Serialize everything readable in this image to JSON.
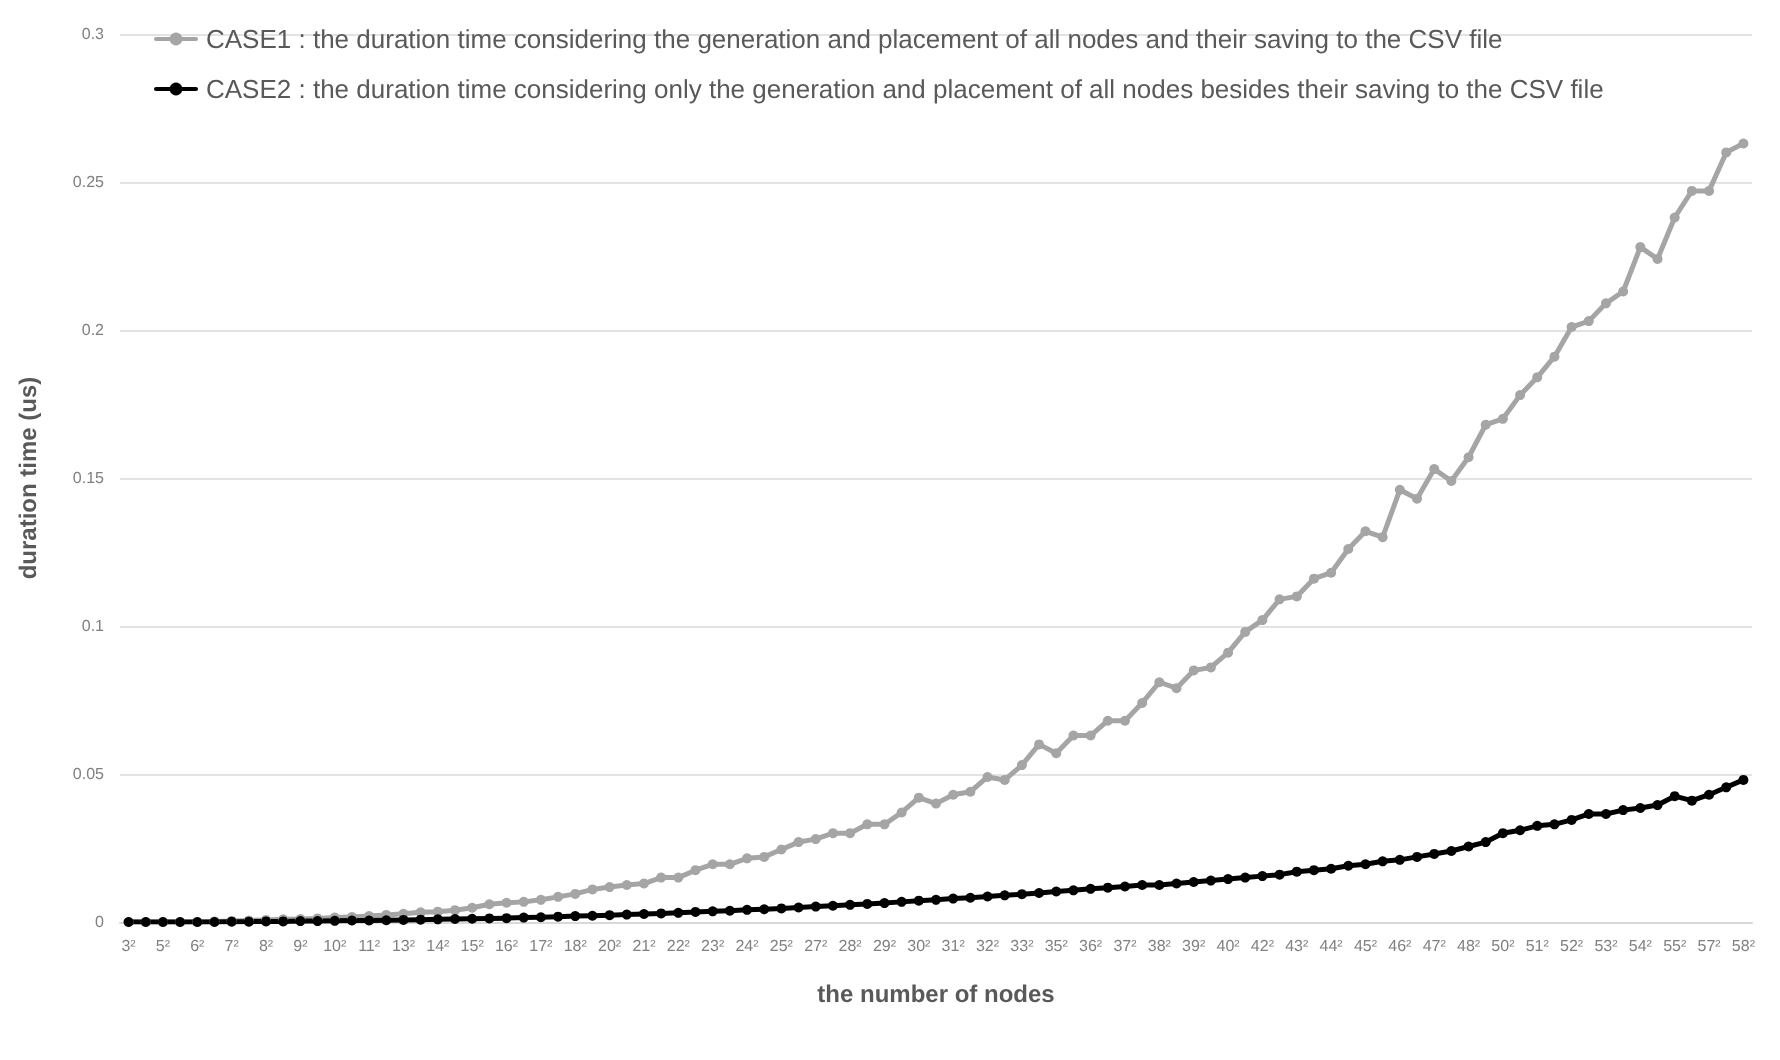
{
  "chart_data": {
    "type": "line",
    "xlabel": "the number of nodes",
    "ylabel": "duration time (us)",
    "categories": [
      "3²",
      null,
      "5²",
      null,
      "6²",
      null,
      "7²",
      null,
      "8²",
      null,
      "9²",
      null,
      "10²",
      null,
      "11²",
      null,
      "13²",
      null,
      "14²",
      null,
      "15²",
      null,
      "16²",
      null,
      "17²",
      null,
      "18²",
      null,
      "20²",
      null,
      "21²",
      null,
      "22²",
      null,
      "23²",
      null,
      "24²",
      null,
      "25²",
      null,
      "27²",
      null,
      "28²",
      null,
      "29²",
      null,
      "30²",
      null,
      "31²",
      null,
      "32²",
      null,
      "33²",
      null,
      "35²",
      null,
      "36²",
      null,
      "37²",
      null,
      "38²",
      null,
      "39²",
      null,
      "40²",
      null,
      "42²",
      null,
      "43²",
      null,
      "44²",
      null,
      "45²",
      null,
      "46²",
      null,
      "47²",
      null,
      "48²",
      null,
      "50²",
      null,
      "51²",
      null,
      "52²",
      null,
      "53²",
      null,
      "54²",
      null,
      "55²",
      null,
      "57²",
      null,
      "58²"
    ],
    "series": [
      {
        "name": "CASE1 : the duration time considering the generation and placement of all nodes and their saving to the CSV file",
        "color": "#a5a5a5",
        "values": [
          0,
          0,
          0,
          0,
          0,
          0.0002,
          0.0003,
          0.0005,
          0.0007,
          0.0009,
          0.001,
          0.0012,
          0.0015,
          0.0017,
          0.002,
          0.0024,
          0.0028,
          0.0033,
          0.0035,
          0.004,
          0.0048,
          0.006,
          0.0065,
          0.0068,
          0.0075,
          0.0085,
          0.0095,
          0.011,
          0.0118,
          0.0125,
          0.013,
          0.015,
          0.015,
          0.0175,
          0.0195,
          0.0195,
          0.0215,
          0.022,
          0.0245,
          0.027,
          0.028,
          0.03,
          0.03,
          0.033,
          0.033,
          0.037,
          0.042,
          0.04,
          0.043,
          0.044,
          0.049,
          0.048,
          0.053,
          0.06,
          0.057,
          0.063,
          0.063,
          0.068,
          0.068,
          0.074,
          0.081,
          0.079,
          0.085,
          0.086,
          0.091,
          0.098,
          0.102,
          0.109,
          0.11,
          0.116,
          0.118,
          0.126,
          0.132,
          0.13,
          0.146,
          0.143,
          0.153,
          0.149,
          0.157,
          0.168,
          0.17,
          0.178,
          0.184,
          0.191,
          0.201,
          0.203,
          0.209,
          0.213,
          0.228,
          0.224,
          0.238,
          0.247,
          0.247,
          0.26,
          0.263
        ]
      },
      {
        "name": "CASE2 : the duration time considering only the generation and placement of all nodes besides their saving to the CSV file",
        "color": "#000000",
        "values": [
          0,
          0,
          0,
          0,
          0,
          0,
          0.0001,
          0.0001,
          0.0002,
          0.0002,
          0.0003,
          0.0003,
          0.0004,
          0.0005,
          0.0005,
          0.0006,
          0.0007,
          0.0008,
          0.0009,
          0.001,
          0.0011,
          0.0012,
          0.0013,
          0.0015,
          0.0016,
          0.0018,
          0.002,
          0.0021,
          0.0023,
          0.0025,
          0.0027,
          0.0029,
          0.0031,
          0.0034,
          0.0036,
          0.0038,
          0.0041,
          0.0043,
          0.0046,
          0.0049,
          0.0052,
          0.0055,
          0.0058,
          0.0061,
          0.0064,
          0.0068,
          0.0072,
          0.0075,
          0.0079,
          0.0082,
          0.0086,
          0.009,
          0.0094,
          0.0098,
          0.0103,
          0.0107,
          0.0112,
          0.0116,
          0.012,
          0.0125,
          0.0125,
          0.013,
          0.0135,
          0.014,
          0.0145,
          0.015,
          0.0155,
          0.016,
          0.017,
          0.0175,
          0.018,
          0.019,
          0.0195,
          0.0205,
          0.021,
          0.022,
          0.023,
          0.024,
          0.0255,
          0.027,
          0.03,
          0.031,
          0.0325,
          0.033,
          0.0345,
          0.0365,
          0.0365,
          0.0378,
          0.0385,
          0.0395,
          0.0425,
          0.041,
          0.043,
          0.0455,
          0.048
        ]
      }
    ],
    "ylim": [
      0,
      0.3
    ],
    "yticks": [
      0,
      0.05,
      0.1,
      0.15,
      0.2,
      0.25,
      0.3
    ],
    "grid": "y",
    "legend": "top left",
    "marker": "circle",
    "line_style": "solid"
  }
}
